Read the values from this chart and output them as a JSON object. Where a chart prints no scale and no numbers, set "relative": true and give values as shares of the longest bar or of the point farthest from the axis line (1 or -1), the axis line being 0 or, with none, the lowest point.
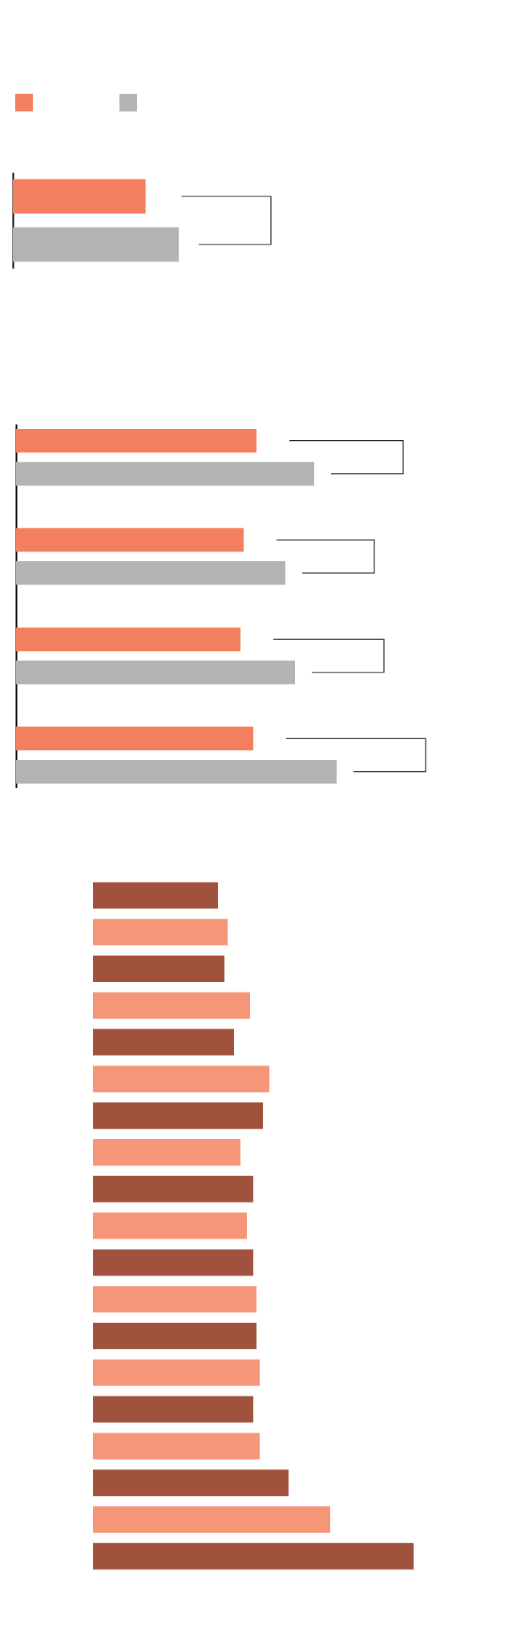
{
  "chart_data": [
    {
      "type": "bar",
      "orientation": "horizontal",
      "relative": true,
      "categories": [
        null
      ],
      "series": [
        {
          "color": "#f47f5f",
          "values": [
            0.8
          ]
        },
        {
          "color": "#b2b3b2",
          "values": [
            1
          ]
        }
      ]
    },
    {
      "type": "bar",
      "orientation": "horizontal",
      "relative": true,
      "categories": [
        null,
        null,
        null,
        null
      ],
      "series": [
        {
          "color": "#f47f5f",
          "values": [
            0.75,
            0.71,
            0.7,
            0.74
          ]
        },
        {
          "color": "#b2b3b2",
          "values": [
            0.93,
            0.84,
            0.87,
            1
          ]
        }
      ]
    },
    {
      "type": "bar",
      "orientation": "horizontal",
      "relative": true,
      "categories": [
        null,
        null,
        null,
        null,
        null,
        null,
        null,
        null,
        null,
        null,
        null,
        null,
        null,
        null,
        null,
        null,
        null,
        null,
        null
      ],
      "values": [
        0.39,
        0.42,
        0.41,
        0.49,
        0.44,
        0.55,
        0.53,
        0.46,
        0.5,
        0.48,
        0.5,
        0.51,
        0.51,
        0.52,
        0.5,
        0.52,
        0.61,
        0.74,
        1
      ],
      "colors": [
        "#a0523c",
        "#f69679",
        "#a0523c",
        "#f69679",
        "#a0523c",
        "#f69679",
        "#a0523c",
        "#f69679",
        "#a0523c",
        "#f69679",
        "#a0523c",
        "#f69679",
        "#a0523c",
        "#f69679",
        "#a0523c",
        "#f69679",
        "#a0523c",
        "#f69679",
        "#a0523c"
      ]
    }
  ]
}
